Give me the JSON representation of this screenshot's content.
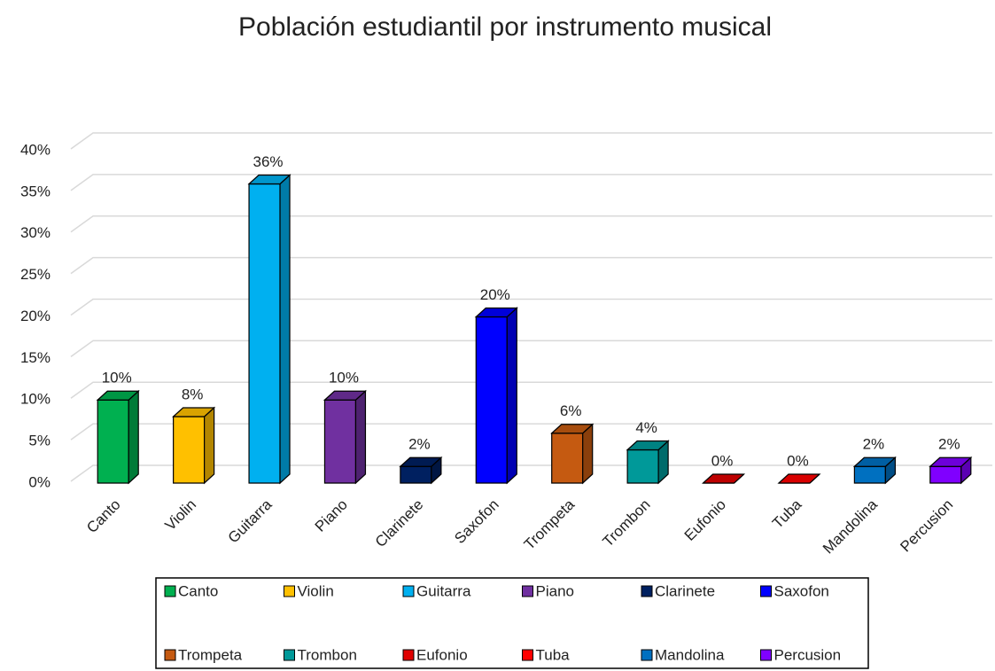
{
  "chart_data": {
    "type": "bar3d",
    "title": "Población estudiantil por instrumento musical",
    "categories": [
      "Canto",
      "Violin",
      "Guitarra",
      "Piano",
      "Clarinete",
      "Saxofon",
      "Trompeta",
      "Trombon",
      "Eufonio",
      "Tuba",
      "Mandolina",
      "Percusion"
    ],
    "values": [
      10,
      8,
      36,
      10,
      2,
      20,
      6,
      4,
      0,
      0,
      2,
      2
    ],
    "value_labels": [
      "10%",
      "8%",
      "36%",
      "10%",
      "2%",
      "20%",
      "6%",
      "4%",
      "0%",
      "0%",
      "2%",
      "2%"
    ],
    "colors": [
      "#00b050",
      "#ffc000",
      "#00b0f0",
      "#7030a0",
      "#002060",
      "#0000ff",
      "#c55a11",
      "#009999",
      "#e00000",
      "#ff0000",
      "#0070c0",
      "#8000ff"
    ],
    "ylim": [
      0,
      40
    ],
    "yticks": [
      {
        "value": 0,
        "label": "0%"
      },
      {
        "value": 5,
        "label": "5%"
      },
      {
        "value": 10,
        "label": "10%"
      },
      {
        "value": 15,
        "label": "15%"
      },
      {
        "value": 20,
        "label": "20%"
      },
      {
        "value": 25,
        "label": "25%"
      },
      {
        "value": 30,
        "label": "30%"
      },
      {
        "value": 35,
        "label": "35%"
      },
      {
        "value": 40,
        "label": "40%"
      }
    ],
    "grid": true,
    "legend": "bottom"
  }
}
